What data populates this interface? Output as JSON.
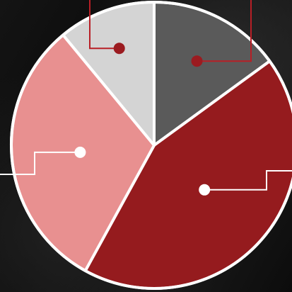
{
  "chart_data": {
    "type": "pie",
    "title": "",
    "slices": [
      {
        "value": 15,
        "color": "#5a5a5a",
        "marker": "#9b1b20",
        "leader": "up-right"
      },
      {
        "value": 43,
        "color": "#951b1e",
        "marker": "#ffffff",
        "leader": "right"
      },
      {
        "value": 31,
        "color": "#e89090",
        "marker": "#ffffff",
        "leader": "left"
      },
      {
        "value": 11,
        "color": "#d4d4d4",
        "marker": "#9b1b20",
        "leader": "up-left"
      }
    ],
    "start_angle_deg": 0,
    "direction": "clockwise",
    "slice_border_color": "#ffffff",
    "leader_line_color": "#b81f26",
    "leader_line_color_light": "#ffffff"
  }
}
